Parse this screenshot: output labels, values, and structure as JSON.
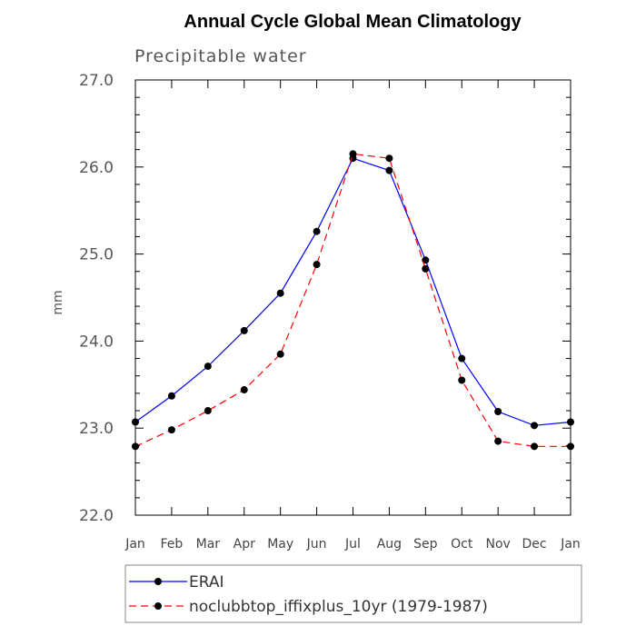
{
  "chart_data": {
    "type": "line",
    "title": "Annual Cycle Global Mean Climatology",
    "subtitle": "Precipitable water",
    "xlabel": "",
    "ylabel": "mm",
    "categories": [
      "Jan",
      "Feb",
      "Mar",
      "Apr",
      "May",
      "Jun",
      "Jul",
      "Aug",
      "Sep",
      "Oct",
      "Nov",
      "Dec",
      "Jan"
    ],
    "ylim": [
      22.0,
      27.0
    ],
    "yticks": [
      "22.0",
      "23.0",
      "24.0",
      "25.0",
      "26.0",
      "27.0"
    ],
    "series": [
      {
        "name": "ERAI",
        "color": "#0000ff",
        "dash": "solid",
        "values": [
          23.07,
          23.37,
          23.71,
          24.12,
          24.55,
          25.26,
          26.1,
          25.96,
          24.93,
          23.8,
          23.19,
          23.03,
          23.07
        ]
      },
      {
        "name": "noclubbtop_iffixplus_10yr (1979-1987)",
        "color": "#ff0000",
        "dash": "dashed",
        "values": [
          22.79,
          22.98,
          23.2,
          23.44,
          23.85,
          24.88,
          26.15,
          26.1,
          24.83,
          23.55,
          22.85,
          22.79,
          22.79
        ]
      }
    ],
    "grid": false,
    "legend_position": "bottom"
  }
}
